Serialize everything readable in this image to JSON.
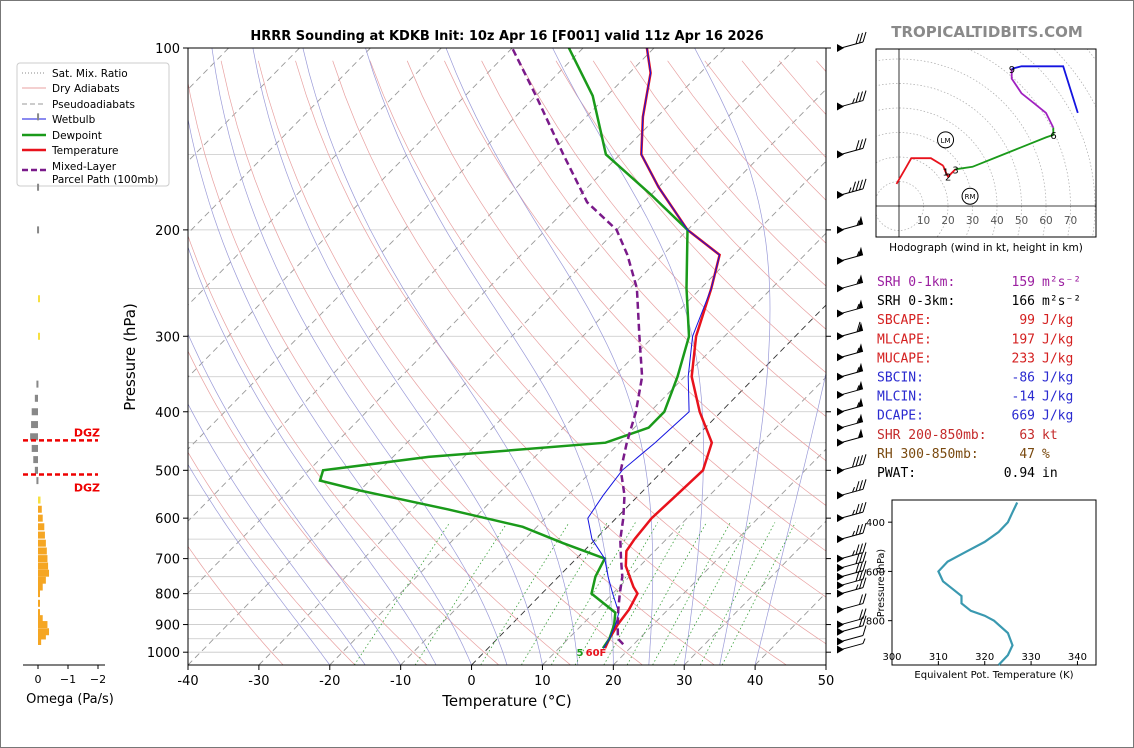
{
  "site_logo": "TROPICALTIDBITS.COM",
  "chart_data": [
    {
      "type": "line",
      "name": "skewt",
      "title": "HRRR Sounding at KDKB Init: 10z Apr 16 [F001] valid 11z Apr 16 2026",
      "xlabel": "Temperature (°C)",
      "ylabel": "Pressure (hPa)",
      "xlim": [
        -40,
        50
      ],
      "ylim": [
        1050,
        100
      ],
      "y_scale": "log",
      "x_ticks": [
        -40,
        -30,
        -20,
        -10,
        0,
        10,
        20,
        30,
        40,
        50
      ],
      "y_ticks": [
        100,
        200,
        300,
        400,
        500,
        600,
        700,
        800,
        900,
        1000
      ],
      "legend": {
        "placement": "top-left",
        "entries": [
          "Sat. Mix. Ratio",
          "Dry Adiabats",
          "Pseudoadiabats",
          "Wetbulb",
          "Dewpoint",
          "Temperature",
          "Mixed-Layer\nParcel Path (100mb)"
        ]
      },
      "mixing_ratio_labels": [
        "1",
        "2",
        "4",
        "6",
        "8",
        "10",
        "13",
        "16",
        "20",
        "24",
        "30",
        "36"
      ],
      "surface_labels": {
        "dewpoint": "5",
        "temperature": "60F"
      },
      "series": [
        {
          "name": "Temperature",
          "color": "#e8121c",
          "points": [
            [
              16.5,
              985
            ],
            [
              15.8,
              950
            ],
            [
              15,
              900
            ],
            [
              14.5,
              850
            ],
            [
              13.5,
              800
            ],
            [
              12,
              780
            ],
            [
              8,
              720
            ],
            [
              6,
              680
            ],
            [
              5.5,
              650
            ],
            [
              5,
              600
            ],
            [
              5.3,
              550
            ],
            [
              5.6,
              500
            ],
            [
              3,
              450
            ],
            [
              -3,
              400
            ],
            [
              -9,
              350
            ],
            [
              -14,
              300
            ],
            [
              -18.5,
              250
            ],
            [
              -22,
              220
            ],
            [
              -30,
              200
            ],
            [
              -40,
              170
            ],
            [
              -47,
              150
            ],
            [
              -52,
              130
            ],
            [
              -57,
              110
            ],
            [
              -61,
              100
            ]
          ]
        },
        {
          "name": "Dewpoint",
          "color": "#1a9a1a",
          "points": [
            [
              16.2,
              985
            ],
            [
              15.8,
              950
            ],
            [
              14.5,
              900
            ],
            [
              13,
              860
            ],
            [
              7,
              800
            ],
            [
              5.2,
              750
            ],
            [
              4,
              700
            ],
            [
              -4,
              660
            ],
            [
              -12,
              620
            ],
            [
              -25,
              580
            ],
            [
              -40,
              540
            ],
            [
              -47,
              520
            ],
            [
              -48,
              500
            ],
            [
              -35,
              475
            ],
            [
              -12,
              450
            ],
            [
              -8,
              425
            ],
            [
              -8,
              400
            ],
            [
              -11,
              350
            ],
            [
              -15,
              300
            ],
            [
              -22,
              250
            ],
            [
              -30,
              200
            ],
            [
              -40,
              175
            ],
            [
              -52,
              150
            ],
            [
              -62,
              120
            ],
            [
              -72,
              100
            ]
          ]
        },
        {
          "name": "Wetbulb",
          "color": "#1414e0",
          "points": [
            [
              16.3,
              985
            ],
            [
              15.8,
              950
            ],
            [
              14.7,
              900
            ],
            [
              13.5,
              860
            ],
            [
              10,
              800
            ],
            [
              7,
              750
            ],
            [
              4,
              700
            ],
            [
              -0.5,
              650
            ],
            [
              -4,
              600
            ],
            [
              -5,
              550
            ],
            [
              -5.8,
              500
            ],
            [
              -5,
              450
            ],
            [
              -4.5,
              400
            ],
            [
              -9.5,
              350
            ],
            [
              -14.5,
              300
            ],
            [
              -18.5,
              250
            ],
            [
              -22,
              220
            ],
            [
              -30,
              200
            ],
            [
              -40,
              170
            ],
            [
              -47,
              150
            ],
            [
              -52,
              130
            ],
            [
              -57,
              110
            ],
            [
              -61,
              100
            ]
          ]
        },
        {
          "name": "Mixed-Layer Parcel Path (100mb)",
          "color": "#7a1a8a",
          "dash": true,
          "points": [
            [
              18.5,
              970
            ],
            [
              17,
              950
            ],
            [
              15,
              900
            ],
            [
              13,
              850
            ],
            [
              11,
              800
            ],
            [
              9,
              750
            ],
            [
              6.3,
              700
            ],
            [
              3.5,
              650
            ],
            [
              1,
              600
            ],
            [
              -2,
              550
            ],
            [
              -6,
              500
            ],
            [
              -9,
              450
            ],
            [
              -12,
              400
            ],
            [
              -16,
              350
            ],
            [
              -22,
              300
            ],
            [
              -29,
              250
            ],
            [
              -35,
              220
            ],
            [
              -40,
              200
            ],
            [
              -48,
              180
            ],
            [
              -58,
              150
            ],
            [
              -70,
              120
            ],
            [
              -80,
              100
            ]
          ]
        }
      ],
      "grid": true
    },
    {
      "type": "line",
      "name": "hodograph",
      "xlabel": "Hodograph (wind in kt, height in km)",
      "x_ticks": [
        10,
        20,
        30,
        40,
        50,
        60,
        70
      ],
      "markers": [
        "LM",
        "RM"
      ],
      "height_labels": [
        {
          "label": "1",
          "u": 19,
          "v": 14
        },
        {
          "label": "2",
          "u": 20,
          "v": 12
        },
        {
          "label": "3",
          "u": 23,
          "v": 15
        },
        {
          "label": "6",
          "u": 63,
          "v": 29
        },
        {
          "label": "9",
          "u": 46,
          "v": 56
        }
      ],
      "segments": [
        {
          "color": "#e8121c",
          "points": [
            [
              -1,
              9
            ],
            [
              3,
              16
            ],
            [
              5,
              19.5
            ],
            [
              13,
              19.5
            ],
            [
              18,
              16.5
            ]
          ]
        },
        {
          "color": "#e8121c",
          "points": [
            [
              18,
              16.5
            ],
            [
              19,
              14
            ],
            [
              20,
              12
            ],
            [
              21,
              13
            ],
            [
              23,
              15
            ]
          ]
        },
        {
          "color": "#1a9a1a",
          "points": [
            [
              23,
              15
            ],
            [
              30,
              16
            ],
            [
              40,
              20
            ],
            [
              50,
              24
            ],
            [
              60,
              28
            ],
            [
              63,
              29
            ],
            [
              63,
              32
            ]
          ]
        },
        {
          "color": "#a020c0",
          "points": [
            [
              63,
              32
            ],
            [
              60,
              38
            ],
            [
              55,
              42
            ],
            [
              50,
              46
            ],
            [
              46,
              52
            ],
            [
              46,
              56
            ]
          ]
        },
        {
          "color": "#1414e0",
          "points": [
            [
              46,
              56
            ],
            [
              50,
              57
            ],
            [
              58,
              57
            ],
            [
              67,
              57
            ],
            [
              73,
              38
            ]
          ]
        }
      ],
      "storm_motion": {
        "LM": [
          19,
          27
        ],
        "RM": [
          29,
          4
        ]
      }
    },
    {
      "type": "line",
      "name": "theta_e",
      "xlabel": "Equivalent Pot. Temperature (K)",
      "ylabel": "Pressure (hPa)",
      "xlim": [
        300,
        344
      ],
      "ylim": [
        980,
        310
      ],
      "x_ticks": [
        300,
        310,
        320,
        330,
        340
      ],
      "y_ticks": [
        400,
        600,
        800
      ],
      "color": "#3a99b0",
      "points": [
        [
          327,
          320
        ],
        [
          326,
          360
        ],
        [
          325,
          400
        ],
        [
          323,
          440
        ],
        [
          320,
          480
        ],
        [
          316,
          520
        ],
        [
          312,
          560
        ],
        [
          310,
          600
        ],
        [
          311,
          640
        ],
        [
          313,
          670
        ],
        [
          315,
          700
        ],
        [
          315,
          730
        ],
        [
          317,
          760
        ],
        [
          320,
          780
        ],
        [
          322,
          800
        ],
        [
          325,
          850
        ],
        [
          326,
          900
        ],
        [
          325,
          940
        ],
        [
          323,
          980
        ]
      ]
    },
    {
      "type": "bar",
      "name": "omega",
      "xlabel": "Omega (Pa/s)",
      "x_ticks": [
        0,
        -1,
        -2
      ],
      "levels": [
        960,
        940,
        925,
        900,
        880,
        860,
        830,
        800,
        780,
        760,
        740,
        720,
        700,
        680,
        660,
        640,
        620,
        600,
        580,
        560,
        520,
        500,
        480,
        460,
        440,
        420,
        400,
        380,
        360,
        300,
        260,
        200,
        170,
        130
      ],
      "values": [
        0.1,
        0.25,
        0.35,
        0.3,
        0.15,
        0.05,
        0.02,
        0.0,
        0.15,
        0.25,
        0.35,
        0.32,
        0.3,
        0.28,
        0.25,
        0.22,
        0.2,
        0.15,
        0.12,
        0.08,
        -0.05,
        -0.1,
        -0.15,
        -0.2,
        -0.25,
        -0.22,
        -0.2,
        -0.1,
        -0.05,
        0.02,
        0.03,
        -0.03,
        -0.03,
        -0.03
      ],
      "dgz": {
        "label": "DGZ",
        "levels": [
          446,
          508
        ]
      }
    }
  ],
  "winds": [
    [
      990,
      4,
      5
    ],
    [
      960,
      5,
      10
    ],
    [
      925,
      9,
      20
    ],
    [
      900,
      8,
      20
    ],
    [
      850,
      6,
      22
    ],
    [
      800,
      5,
      27
    ],
    [
      775,
      10,
      30
    ],
    [
      750,
      10,
      30
    ],
    [
      725,
      13,
      30
    ],
    [
      700,
      15,
      35
    ],
    [
      650,
      13,
      35
    ],
    [
      600,
      15,
      35
    ],
    [
      550,
      20,
      35
    ],
    [
      500,
      25,
      40
    ],
    [
      450,
      30,
      50
    ],
    [
      425,
      30,
      55
    ],
    [
      400,
      30,
      55
    ],
    [
      375,
      30,
      55
    ],
    [
      350,
      30,
      55
    ],
    [
      325,
      30,
      55
    ],
    [
      300,
      30,
      60
    ],
    [
      275,
      35,
      55
    ],
    [
      250,
      30,
      55
    ],
    [
      225,
      30,
      55
    ],
    [
      200,
      25,
      55
    ],
    [
      175,
      25,
      45
    ],
    [
      150,
      20,
      30
    ],
    [
      125,
      25,
      35
    ],
    [
      100,
      20,
      30
    ]
  ],
  "indices": [
    {
      "label": "SRH 0-1km:",
      "value": "159",
      "unit": "m²s⁻²",
      "color": "#9b1fa0"
    },
    {
      "label": "SRH 0-3km:",
      "value": "166",
      "unit": "m²s⁻²",
      "color": "#000000"
    },
    {
      "label": "SBCAPE:",
      "value": "99",
      "unit": "J/kg",
      "color": "#d42020"
    },
    {
      "label": "MLCAPE:",
      "value": "197",
      "unit": "J/kg",
      "color": "#d42020"
    },
    {
      "label": "MUCAPE:",
      "value": "233",
      "unit": "J/kg",
      "color": "#d42020"
    },
    {
      "label": "SBCIN:",
      "value": "-86",
      "unit": "J/kg",
      "color": "#2a2ad0"
    },
    {
      "label": "MLCIN:",
      "value": "-14",
      "unit": "J/kg",
      "color": "#2a2ad0"
    },
    {
      "label": "DCAPE:",
      "value": "669",
      "unit": "J/kg",
      "color": "#2a2ad0"
    },
    {
      "label": "SHR 200-850mb:",
      "value": "63",
      "unit": "kt",
      "color": "#c42a2a"
    },
    {
      "label": "RH 300-850mb:",
      "value": "47",
      "unit": "%",
      "color": "#7a4a10"
    },
    {
      "label": "PWAT:",
      "value": "0.94",
      "unit": "in",
      "color": "#000000"
    }
  ]
}
